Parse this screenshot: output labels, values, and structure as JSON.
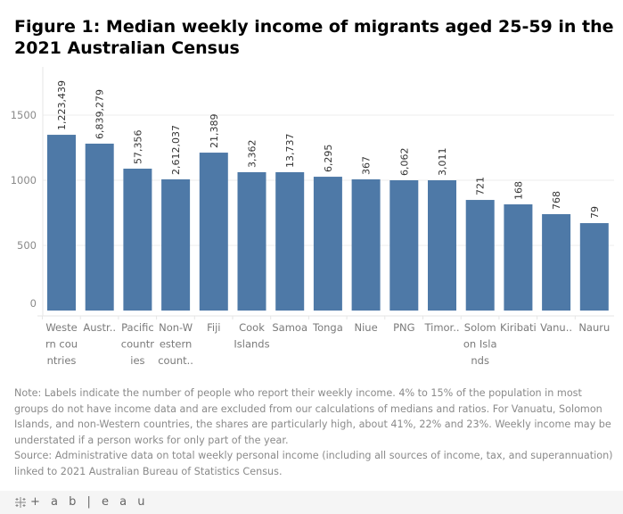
{
  "title": "Figure 1: Median weekly income of migrants aged 25-59 in the 2021 Australian Census",
  "chart_data": {
    "type": "bar",
    "title": "Figure 1: Median weekly income of migrants aged 25-59 in the 2021 Australian Census",
    "xlabel": "",
    "ylabel": "",
    "ylim": [
      0,
      1850
    ],
    "yticks": [
      0,
      500,
      1000,
      1500
    ],
    "grid": true,
    "categories": [
      "Western countries",
      "Australia",
      "Pacific countries",
      "Non-Western countries",
      "Fiji",
      "Cook Islands",
      "Samoa",
      "Tonga",
      "Niue",
      "PNG",
      "Timor-Leste",
      "Solomon Islands",
      "Kiribati",
      "Vanuatu",
      "Nauru"
    ],
    "tick_labels": [
      [
        "Weste",
        "rn cou",
        "ntries"
      ],
      [
        "Austr.."
      ],
      [
        "Pacific",
        "countr",
        "ies"
      ],
      [
        "Non-W",
        "estern",
        "count.."
      ],
      [
        "Fiji"
      ],
      [
        "Cook",
        "Islands"
      ],
      [
        "Samoa"
      ],
      [
        "Tonga"
      ],
      [
        "Niue"
      ],
      [
        "PNG"
      ],
      [
        "Timor.."
      ],
      [
        "Solom",
        "on Isla",
        "nds"
      ],
      [
        "Kiribati"
      ],
      [
        "Vanu.."
      ],
      [
        "Nauru"
      ]
    ],
    "values": [
      1349,
      1281,
      1089,
      1007,
      1212,
      1062,
      1062,
      1027,
      1007,
      1000,
      1000,
      849,
      815,
      740,
      671
    ],
    "data_labels": [
      "1,223,439",
      "6,839,279",
      "57,356",
      "2,612,037",
      "21,389",
      "3,362",
      "13,737",
      "6,295",
      "367",
      "6,062",
      "3,011",
      "721",
      "168",
      "768",
      "79"
    ],
    "bar_color": "#4e79a7"
  },
  "note": {
    "lines": [
      "Note: Labels indicate the number of people who report their weekly income. 4% to 15% of the population in most",
      "groups do not have income data and are excluded from our calculations of medians and ratios. For Vanuatu, Solomon",
      "Islands, and non-Western countries, the shares are particularly high, about 41%, 22% and 23%. Weekly income may be",
      "understated if a person works for only part of the year.",
      "Source: Administrative data on total weekly personal income (including all sources of income, tax, and superannuation)",
      "linked to 2021 Australian Bureau of Statistics Census."
    ]
  },
  "footer": {
    "logo_icon": "tableau-cross-icon",
    "logo_text": "+ a b | e a u"
  }
}
